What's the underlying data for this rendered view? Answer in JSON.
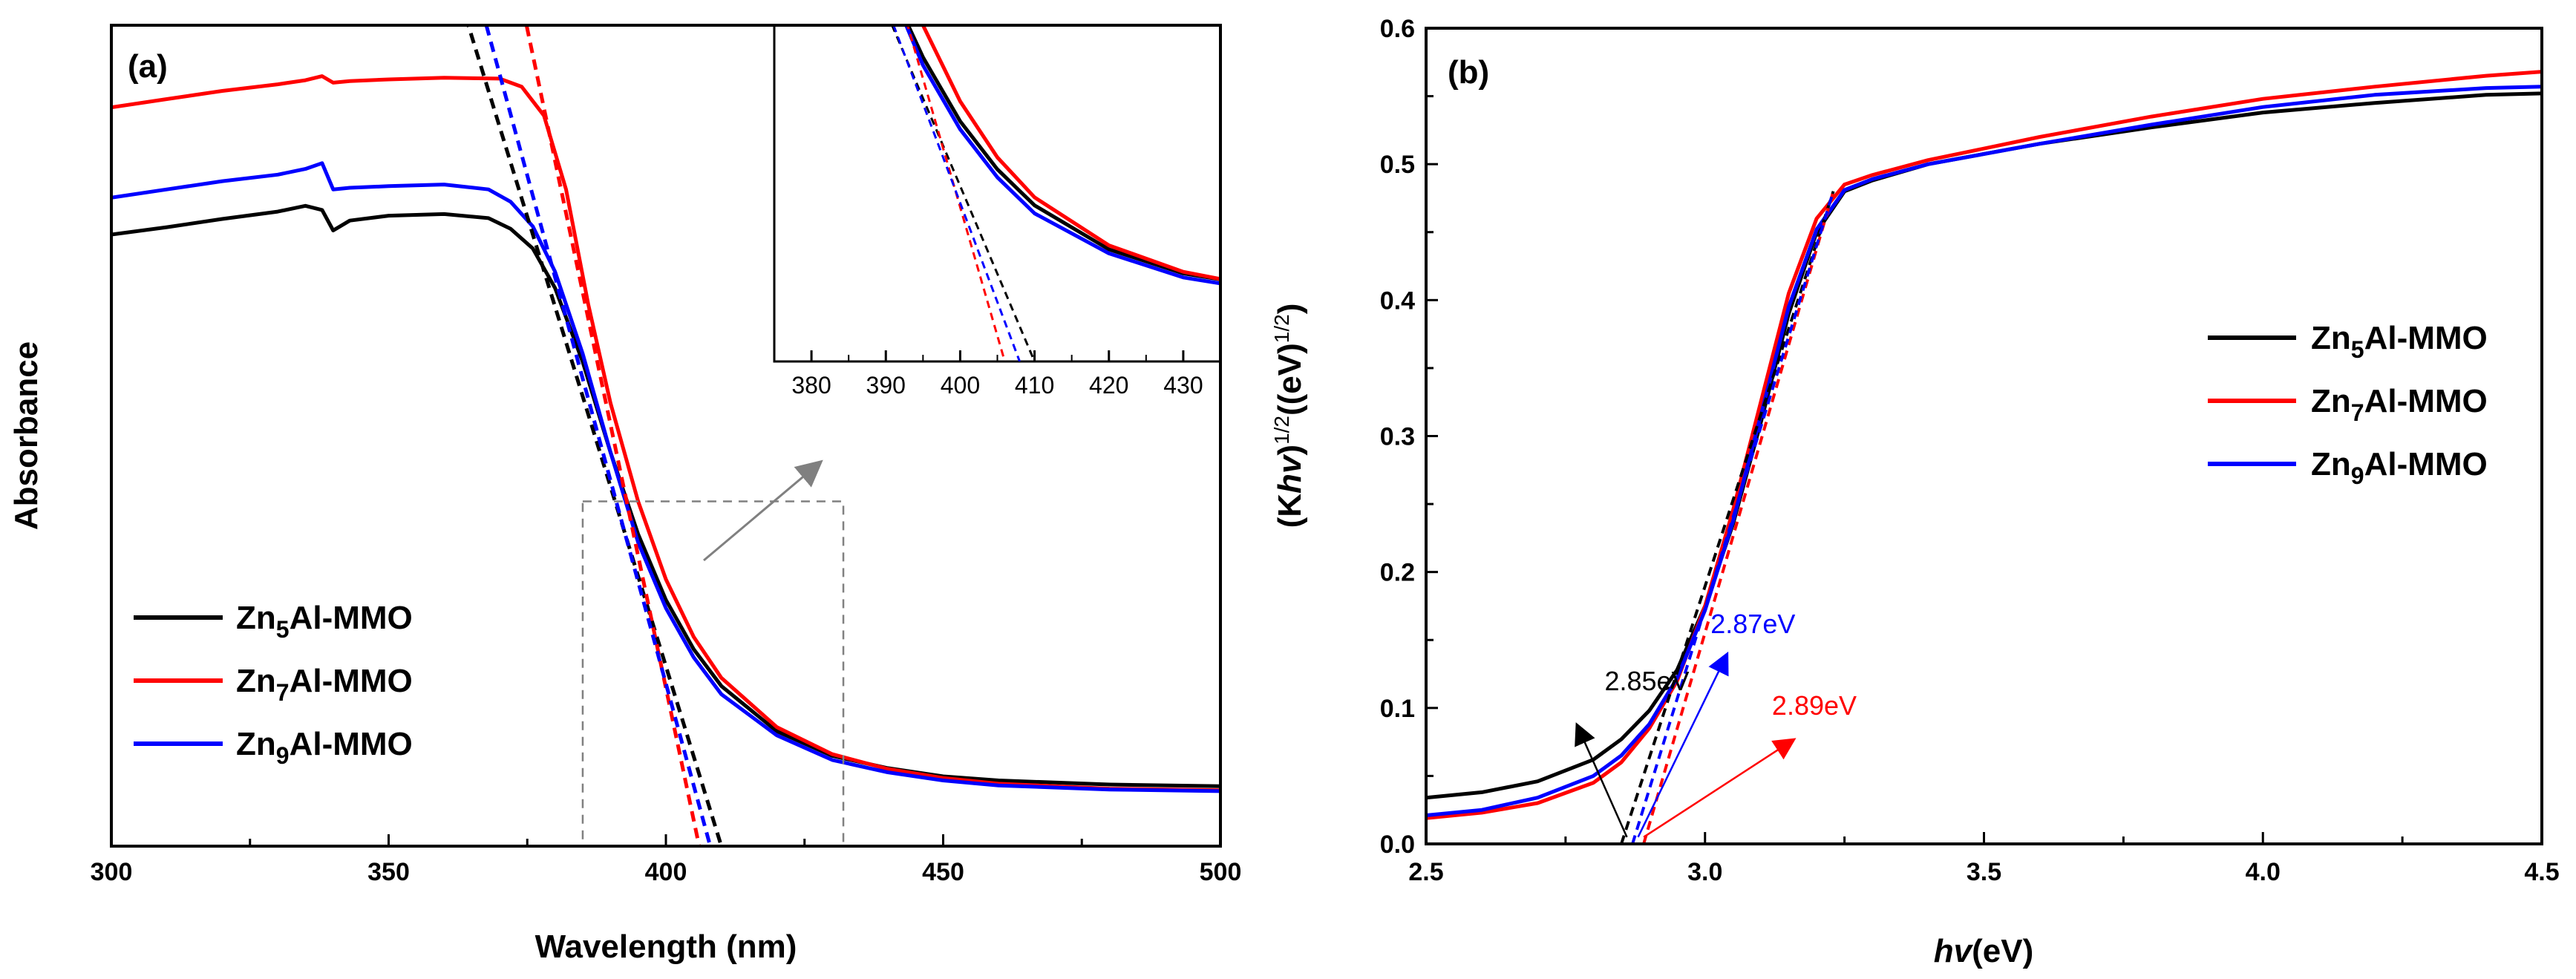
{
  "chart_data": [
    {
      "type": "line",
      "panel_label": "(a)",
      "xlabel": "Wavelength (nm)",
      "ylabel": "Absorbance",
      "xlim": [
        300,
        500
      ],
      "ylim": [
        0,
        1
      ],
      "x_ticks": [
        "300",
        "350",
        "400",
        "450",
        "500"
      ],
      "y_ticks_shown": false,
      "legend_position": "bottom-left",
      "series": [
        {
          "name": "Zn5Al-MMO",
          "legend_main": "Zn",
          "legend_sub": "5",
          "legend_rest": "Al-MMO",
          "color": "#000000",
          "x": [
            300,
            310,
            320,
            330,
            335,
            338,
            340,
            343,
            350,
            360,
            368,
            372,
            376,
            380,
            385,
            390,
            395,
            400,
            405,
            410,
            420,
            430,
            440,
            450,
            460,
            480,
            500
          ],
          "y": [
            0.745,
            0.754,
            0.764,
            0.773,
            0.78,
            0.775,
            0.75,
            0.762,
            0.768,
            0.77,
            0.765,
            0.752,
            0.728,
            0.68,
            0.59,
            0.48,
            0.38,
            0.3,
            0.24,
            0.195,
            0.14,
            0.11,
            0.095,
            0.085,
            0.08,
            0.075,
            0.073
          ]
        },
        {
          "name": "Zn7Al-MMO",
          "legend_main": "Zn",
          "legend_sub": "7",
          "legend_rest": "Al-MMO",
          "color": "#ff0000",
          "x": [
            300,
            310,
            320,
            330,
            335,
            338,
            340,
            343,
            350,
            360,
            370,
            374,
            378,
            382,
            386,
            390,
            395,
            400,
            405,
            410,
            420,
            430,
            440,
            450,
            460,
            480,
            500
          ],
          "y": [
            0.9,
            0.91,
            0.92,
            0.928,
            0.933,
            0.938,
            0.93,
            0.932,
            0.934,
            0.936,
            0.935,
            0.925,
            0.89,
            0.8,
            0.66,
            0.54,
            0.42,
            0.325,
            0.255,
            0.205,
            0.145,
            0.112,
            0.094,
            0.083,
            0.076,
            0.07,
            0.068
          ]
        },
        {
          "name": "Zn9Al-MMO",
          "legend_main": "Zn",
          "legend_sub": "9",
          "legend_rest": "Al-MMO",
          "color": "#0000ff",
          "x": [
            300,
            310,
            320,
            330,
            335,
            338,
            340,
            343,
            350,
            360,
            368,
            372,
            376,
            380,
            385,
            390,
            395,
            400,
            405,
            410,
            420,
            430,
            440,
            450,
            460,
            480,
            500
          ],
          "y": [
            0.79,
            0.8,
            0.81,
            0.818,
            0.825,
            0.832,
            0.8,
            0.802,
            0.804,
            0.806,
            0.8,
            0.785,
            0.755,
            0.7,
            0.6,
            0.48,
            0.37,
            0.29,
            0.23,
            0.185,
            0.135,
            0.105,
            0.09,
            0.08,
            0.074,
            0.069,
            0.067
          ]
        }
      ],
      "tangents": [
        {
          "name": "Zn5Al-MMO",
          "color": "#000000",
          "x": [
            363,
            410
          ],
          "y": [
            1.03,
            0.0
          ]
        },
        {
          "name": "Zn7Al-MMO",
          "color": "#ff0000",
          "x": [
            373,
            406
          ],
          "y": [
            1.06,
            0.0
          ]
        },
        {
          "name": "Zn9Al-MMO",
          "color": "#0000ff",
          "x": [
            366,
            408
          ],
          "y": [
            1.04,
            0.0
          ]
        }
      ],
      "zoom_box": {
        "x": [
          385,
          432
        ],
        "y": [
          0.0,
          0.42
        ]
      },
      "inset": {
        "xlim": [
          375,
          435
        ],
        "ylim": [
          0,
          0.42
        ],
        "x_ticks": [
          "380",
          "390",
          "400",
          "410",
          "420",
          "430"
        ]
      }
    },
    {
      "type": "line",
      "panel_label": "(b)",
      "xlabel_italic": "hv",
      "xlabel_rest": "(eV)",
      "ylabel_parts": {
        "a": "(K",
        "b": "hv",
        "c": ")",
        "d": "1/2",
        "e": "((eV)",
        "f": "1/2",
        "g": ")"
      },
      "xlim": [
        2.5,
        4.5
      ],
      "ylim": [
        0.0,
        0.6
      ],
      "x_ticks": [
        "2.5",
        "3.0",
        "3.5",
        "4.0",
        "4.5"
      ],
      "y_ticks": [
        "0.0",
        "0.1",
        "0.2",
        "0.3",
        "0.4",
        "0.5",
        "0.6"
      ],
      "legend_position": "center-right",
      "series": [
        {
          "name": "Zn5Al-MMO",
          "legend_main": "Zn",
          "legend_sub": "5",
          "legend_rest": "Al-MMO",
          "color": "#000000",
          "x": [
            2.5,
            2.6,
            2.7,
            2.8,
            2.85,
            2.9,
            2.95,
            3.0,
            3.05,
            3.1,
            3.15,
            3.2,
            3.25,
            3.3,
            3.4,
            3.6,
            3.8,
            4.0,
            4.2,
            4.4,
            4.5
          ],
          "y": [
            0.034,
            0.038,
            0.046,
            0.062,
            0.077,
            0.098,
            0.128,
            0.175,
            0.235,
            0.31,
            0.39,
            0.45,
            0.48,
            0.488,
            0.5,
            0.515,
            0.527,
            0.538,
            0.545,
            0.551,
            0.552
          ]
        },
        {
          "name": "Zn7Al-MMO",
          "legend_main": "Zn",
          "legend_sub": "7",
          "legend_rest": "Al-MMO",
          "color": "#ff0000",
          "x": [
            2.5,
            2.6,
            2.7,
            2.8,
            2.85,
            2.9,
            2.95,
            3.0,
            3.05,
            3.1,
            3.15,
            3.2,
            3.25,
            3.3,
            3.4,
            3.6,
            3.8,
            4.0,
            4.2,
            4.4,
            4.5
          ],
          "y": [
            0.019,
            0.023,
            0.03,
            0.045,
            0.06,
            0.085,
            0.12,
            0.175,
            0.245,
            0.325,
            0.405,
            0.46,
            0.485,
            0.492,
            0.503,
            0.52,
            0.535,
            0.548,
            0.557,
            0.565,
            0.568
          ]
        },
        {
          "name": "Zn9Al-MMO",
          "legend_main": "Zn",
          "legend_sub": "9",
          "legend_rest": "Al-MMO",
          "color": "#0000ff",
          "x": [
            2.5,
            2.6,
            2.7,
            2.8,
            2.85,
            2.9,
            2.95,
            3.0,
            3.05,
            3.1,
            3.15,
            3.2,
            3.25,
            3.3,
            3.4,
            3.6,
            3.8,
            4.0,
            4.2,
            4.4,
            4.5
          ],
          "y": [
            0.021,
            0.025,
            0.034,
            0.05,
            0.065,
            0.088,
            0.122,
            0.172,
            0.237,
            0.315,
            0.395,
            0.452,
            0.481,
            0.489,
            0.5,
            0.515,
            0.529,
            0.542,
            0.551,
            0.556,
            0.557
          ]
        }
      ],
      "tangents": [
        {
          "name": "Zn5Al-MMO",
          "color": "#000000",
          "x": [
            2.85,
            3.23
          ],
          "y": [
            0.0,
            0.48
          ]
        },
        {
          "name": "Zn7Al-MMO",
          "color": "#ff0000",
          "x": [
            2.89,
            3.23
          ],
          "y": [
            0.0,
            0.48
          ]
        },
        {
          "name": "Zn9Al-MMO",
          "color": "#0000ff",
          "x": [
            2.87,
            3.23
          ],
          "y": [
            0.0,
            0.48
          ]
        }
      ],
      "annotations": [
        {
          "text": "2.85eV",
          "color": "#000000",
          "x": 2.82,
          "y": 0.113,
          "arrow_from": [
            2.86,
            0.005
          ],
          "arrow_to": [
            2.77,
            0.088
          ]
        },
        {
          "text": "2.87eV",
          "color": "#0000ff",
          "x": 3.01,
          "y": 0.155,
          "arrow_from": [
            2.88,
            0.005
          ],
          "arrow_to": [
            3.04,
            0.14
          ]
        },
        {
          "text": "2.89eV",
          "color": "#ff0000",
          "x": 3.12,
          "y": 0.095,
          "arrow_from": [
            2.89,
            0.005
          ],
          "arrow_to": [
            3.16,
            0.077
          ]
        }
      ]
    }
  ]
}
